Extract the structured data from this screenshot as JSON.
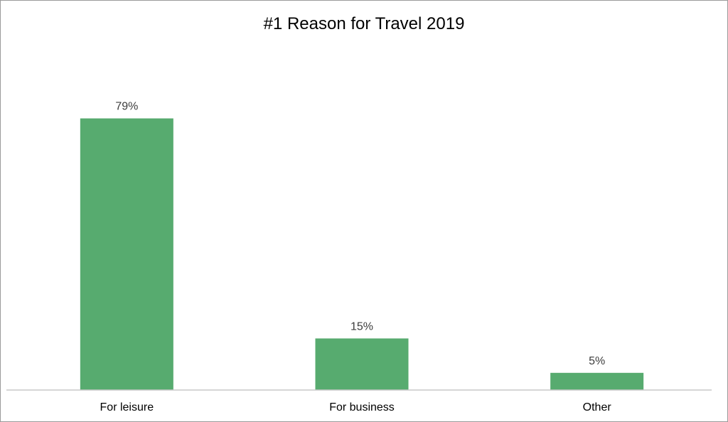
{
  "chart_data": {
    "type": "bar",
    "title": "#1 Reason for Travel 2019",
    "xlabel": "",
    "ylabel": "",
    "categories": [
      "For leisure",
      "For business",
      "Other"
    ],
    "values": [
      79,
      15,
      5
    ],
    "data_labels": [
      "79%",
      "15%",
      "5%"
    ],
    "unit": "%",
    "ylim": [
      0,
      100
    ],
    "grid": false,
    "legend": "none",
    "bar_color": "#57ab6f",
    "axis_color": "#c8c8c8"
  }
}
